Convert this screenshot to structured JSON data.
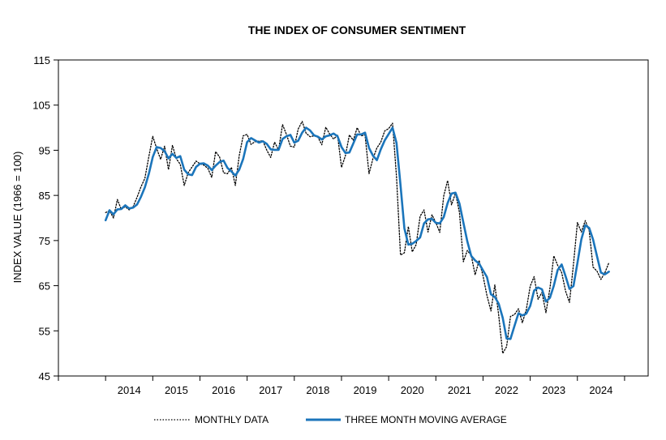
{
  "chart_data": {
    "type": "line",
    "title": "THE INDEX OF CONSUMER SENTIMENT",
    "xlabel": "",
    "ylabel": "INDEX VALUE (1966 = 100)",
    "ylim": [
      45,
      115
    ],
    "yticks": [
      45,
      55,
      65,
      75,
      85,
      95,
      105,
      115
    ],
    "xlim": [
      2013,
      2025.5
    ],
    "xticks": [
      2014,
      2015,
      2016,
      2017,
      2018,
      2019,
      2020,
      2021,
      2022,
      2023,
      2024
    ],
    "grid": false,
    "legend_position": "bottom",
    "series": [
      {
        "name": "MONTHLY DATA",
        "style": "dotted",
        "color": "#000000",
        "points": [
          [
            2014.0,
            81.2
          ],
          [
            2014.083,
            81.6
          ],
          [
            2014.167,
            80.0
          ],
          [
            2014.25,
            84.1
          ],
          [
            2014.333,
            81.9
          ],
          [
            2014.417,
            82.5
          ],
          [
            2014.5,
            81.8
          ],
          [
            2014.583,
            82.5
          ],
          [
            2014.667,
            84.6
          ],
          [
            2014.75,
            86.9
          ],
          [
            2014.833,
            88.8
          ],
          [
            2014.917,
            93.6
          ],
          [
            2015.0,
            98.1
          ],
          [
            2015.083,
            95.4
          ],
          [
            2015.167,
            93.0
          ],
          [
            2015.25,
            95.9
          ],
          [
            2015.333,
            90.7
          ],
          [
            2015.417,
            96.1
          ],
          [
            2015.5,
            93.1
          ],
          [
            2015.583,
            91.9
          ],
          [
            2015.667,
            87.2
          ],
          [
            2015.75,
            90.0
          ],
          [
            2015.833,
            91.3
          ],
          [
            2015.917,
            92.6
          ],
          [
            2016.0,
            92.0
          ],
          [
            2016.083,
            91.7
          ],
          [
            2016.167,
            91.0
          ],
          [
            2016.25,
            89.0
          ],
          [
            2016.333,
            94.7
          ],
          [
            2016.417,
            93.5
          ],
          [
            2016.5,
            90.0
          ],
          [
            2016.583,
            89.8
          ],
          [
            2016.667,
            91.2
          ],
          [
            2016.75,
            87.2
          ],
          [
            2016.833,
            93.8
          ],
          [
            2016.917,
            98.2
          ],
          [
            2017.0,
            98.5
          ],
          [
            2017.083,
            96.3
          ],
          [
            2017.167,
            96.9
          ],
          [
            2017.25,
            97.0
          ],
          [
            2017.333,
            97.1
          ],
          [
            2017.417,
            95.0
          ],
          [
            2017.5,
            93.4
          ],
          [
            2017.583,
            96.8
          ],
          [
            2017.667,
            95.1
          ],
          [
            2017.75,
            100.7
          ],
          [
            2017.833,
            98.5
          ],
          [
            2017.917,
            95.9
          ],
          [
            2018.0,
            95.7
          ],
          [
            2018.083,
            99.7
          ],
          [
            2018.167,
            101.4
          ],
          [
            2018.25,
            98.8
          ],
          [
            2018.333,
            98.0
          ],
          [
            2018.417,
            98.2
          ],
          [
            2018.5,
            97.9
          ],
          [
            2018.583,
            96.2
          ],
          [
            2018.667,
            100.1
          ],
          [
            2018.75,
            98.6
          ],
          [
            2018.833,
            97.5
          ],
          [
            2018.917,
            98.3
          ],
          [
            2019.0,
            91.2
          ],
          [
            2019.083,
            93.8
          ],
          [
            2019.167,
            98.4
          ],
          [
            2019.25,
            97.2
          ],
          [
            2019.333,
            100.0
          ],
          [
            2019.417,
            98.2
          ],
          [
            2019.5,
            98.4
          ],
          [
            2019.583,
            89.8
          ],
          [
            2019.667,
            93.2
          ],
          [
            2019.75,
            95.5
          ],
          [
            2019.833,
            96.8
          ],
          [
            2019.917,
            99.3
          ],
          [
            2020.0,
            99.8
          ],
          [
            2020.083,
            101.0
          ],
          [
            2020.167,
            89.1
          ],
          [
            2020.25,
            71.8
          ],
          [
            2020.333,
            72.3
          ],
          [
            2020.417,
            78.1
          ],
          [
            2020.5,
            72.5
          ],
          [
            2020.583,
            74.1
          ],
          [
            2020.667,
            80.4
          ],
          [
            2020.75,
            81.8
          ],
          [
            2020.833,
            76.9
          ],
          [
            2020.917,
            80.7
          ],
          [
            2021.0,
            79.0
          ],
          [
            2021.083,
            76.8
          ],
          [
            2021.167,
            84.9
          ],
          [
            2021.25,
            88.3
          ],
          [
            2021.333,
            82.9
          ],
          [
            2021.417,
            85.5
          ],
          [
            2021.5,
            81.2
          ],
          [
            2021.583,
            70.3
          ],
          [
            2021.667,
            72.8
          ],
          [
            2021.75,
            71.7
          ],
          [
            2021.833,
            67.4
          ],
          [
            2021.917,
            70.6
          ],
          [
            2022.0,
            67.2
          ],
          [
            2022.083,
            62.8
          ],
          [
            2022.167,
            59.4
          ],
          [
            2022.25,
            65.2
          ],
          [
            2022.333,
            58.4
          ],
          [
            2022.417,
            50.0
          ],
          [
            2022.5,
            51.5
          ],
          [
            2022.583,
            58.2
          ],
          [
            2022.667,
            58.6
          ],
          [
            2022.75,
            59.9
          ],
          [
            2022.833,
            56.8
          ],
          [
            2022.917,
            59.7
          ],
          [
            2023.0,
            64.9
          ],
          [
            2023.083,
            67.0
          ],
          [
            2023.167,
            62.0
          ],
          [
            2023.25,
            63.5
          ],
          [
            2023.333,
            59.0
          ],
          [
            2023.417,
            64.4
          ],
          [
            2023.5,
            71.6
          ],
          [
            2023.583,
            69.5
          ],
          [
            2023.667,
            67.9
          ],
          [
            2023.75,
            63.8
          ],
          [
            2023.833,
            61.3
          ],
          [
            2023.917,
            69.7
          ],
          [
            2024.0,
            79.0
          ],
          [
            2024.083,
            76.9
          ],
          [
            2024.167,
            79.4
          ],
          [
            2024.25,
            77.2
          ],
          [
            2024.333,
            69.1
          ],
          [
            2024.417,
            68.2
          ],
          [
            2024.5,
            66.4
          ],
          [
            2024.583,
            67.9
          ],
          [
            2024.667,
            70.1
          ]
        ]
      },
      {
        "name": "THREE MONTH MOVING AVERAGE",
        "style": "solid",
        "color": "#1b75bb",
        "points": [
          [
            2014.0,
            79.5
          ],
          [
            2014.083,
            81.7
          ],
          [
            2014.167,
            80.8
          ],
          [
            2014.25,
            81.9
          ],
          [
            2014.333,
            82.0
          ],
          [
            2014.417,
            82.8
          ],
          [
            2014.5,
            82.1
          ],
          [
            2014.583,
            82.3
          ],
          [
            2014.667,
            83.0
          ],
          [
            2014.75,
            84.7
          ],
          [
            2014.833,
            86.8
          ],
          [
            2014.917,
            89.8
          ],
          [
            2015.0,
            93.5
          ],
          [
            2015.083,
            95.7
          ],
          [
            2015.167,
            95.5
          ],
          [
            2015.25,
            94.8
          ],
          [
            2015.333,
            93.2
          ],
          [
            2015.417,
            94.2
          ],
          [
            2015.5,
            93.3
          ],
          [
            2015.583,
            93.7
          ],
          [
            2015.667,
            90.7
          ],
          [
            2015.75,
            89.7
          ],
          [
            2015.833,
            89.5
          ],
          [
            2015.917,
            91.3
          ],
          [
            2016.0,
            92.0
          ],
          [
            2016.083,
            92.1
          ],
          [
            2016.167,
            91.6
          ],
          [
            2016.25,
            90.6
          ],
          [
            2016.333,
            91.6
          ],
          [
            2016.417,
            92.4
          ],
          [
            2016.5,
            92.7
          ],
          [
            2016.583,
            91.1
          ],
          [
            2016.667,
            90.3
          ],
          [
            2016.75,
            89.4
          ],
          [
            2016.833,
            90.7
          ],
          [
            2016.917,
            93.1
          ],
          [
            2017.0,
            96.8
          ],
          [
            2017.083,
            97.7
          ],
          [
            2017.167,
            97.2
          ],
          [
            2017.25,
            96.7
          ],
          [
            2017.333,
            97.0
          ],
          [
            2017.417,
            96.4
          ],
          [
            2017.5,
            95.2
          ],
          [
            2017.583,
            95.1
          ],
          [
            2017.667,
            95.1
          ],
          [
            2017.75,
            97.5
          ],
          [
            2017.833,
            98.1
          ],
          [
            2017.917,
            98.4
          ],
          [
            2018.0,
            96.7
          ],
          [
            2018.083,
            97.1
          ],
          [
            2018.167,
            98.9
          ],
          [
            2018.25,
            100.0
          ],
          [
            2018.333,
            99.4
          ],
          [
            2018.417,
            98.3
          ],
          [
            2018.5,
            98.0
          ],
          [
            2018.583,
            97.4
          ],
          [
            2018.667,
            98.1
          ],
          [
            2018.75,
            98.3
          ],
          [
            2018.833,
            98.7
          ],
          [
            2018.917,
            98.1
          ],
          [
            2019.0,
            95.7
          ],
          [
            2019.083,
            94.4
          ],
          [
            2019.167,
            94.5
          ],
          [
            2019.25,
            96.5
          ],
          [
            2019.333,
            98.5
          ],
          [
            2019.417,
            98.5
          ],
          [
            2019.5,
            98.9
          ],
          [
            2019.583,
            95.5
          ],
          [
            2019.667,
            93.8
          ],
          [
            2019.75,
            92.8
          ],
          [
            2019.833,
            95.2
          ],
          [
            2019.917,
            97.2
          ],
          [
            2020.0,
            98.6
          ],
          [
            2020.083,
            100.0
          ],
          [
            2020.167,
            96.6
          ],
          [
            2020.25,
            87.3
          ],
          [
            2020.333,
            77.7
          ],
          [
            2020.417,
            74.1
          ],
          [
            2020.5,
            74.3
          ],
          [
            2020.583,
            74.9
          ],
          [
            2020.667,
            75.7
          ],
          [
            2020.75,
            78.8
          ],
          [
            2020.833,
            79.7
          ],
          [
            2020.917,
            79.8
          ],
          [
            2021.0,
            78.9
          ],
          [
            2021.083,
            78.8
          ],
          [
            2021.167,
            80.2
          ],
          [
            2021.25,
            83.3
          ],
          [
            2021.333,
            85.4
          ],
          [
            2021.417,
            85.6
          ],
          [
            2021.5,
            83.2
          ],
          [
            2021.583,
            79.0
          ],
          [
            2021.667,
            74.8
          ],
          [
            2021.75,
            71.6
          ],
          [
            2021.833,
            70.6
          ],
          [
            2021.917,
            69.9
          ],
          [
            2022.0,
            68.4
          ],
          [
            2022.083,
            66.9
          ],
          [
            2022.167,
            63.1
          ],
          [
            2022.25,
            62.5
          ],
          [
            2022.333,
            61.0
          ],
          [
            2022.417,
            57.9
          ],
          [
            2022.5,
            53.3
          ],
          [
            2022.583,
            53.2
          ],
          [
            2022.667,
            56.1
          ],
          [
            2022.75,
            58.9
          ],
          [
            2022.833,
            58.4
          ],
          [
            2022.917,
            58.8
          ],
          [
            2023.0,
            60.5
          ],
          [
            2023.083,
            63.9
          ],
          [
            2023.167,
            64.6
          ],
          [
            2023.25,
            64.2
          ],
          [
            2023.333,
            61.5
          ],
          [
            2023.417,
            62.3
          ],
          [
            2023.5,
            65.0
          ],
          [
            2023.583,
            68.5
          ],
          [
            2023.667,
            69.7
          ],
          [
            2023.75,
            67.1
          ],
          [
            2023.833,
            64.3
          ],
          [
            2023.917,
            64.9
          ],
          [
            2024.0,
            70.0
          ],
          [
            2024.083,
            75.2
          ],
          [
            2024.167,
            78.4
          ],
          [
            2024.25,
            77.8
          ],
          [
            2024.333,
            75.2
          ],
          [
            2024.417,
            71.5
          ],
          [
            2024.5,
            67.9
          ],
          [
            2024.583,
            67.5
          ],
          [
            2024.667,
            68.1
          ]
        ]
      }
    ]
  }
}
